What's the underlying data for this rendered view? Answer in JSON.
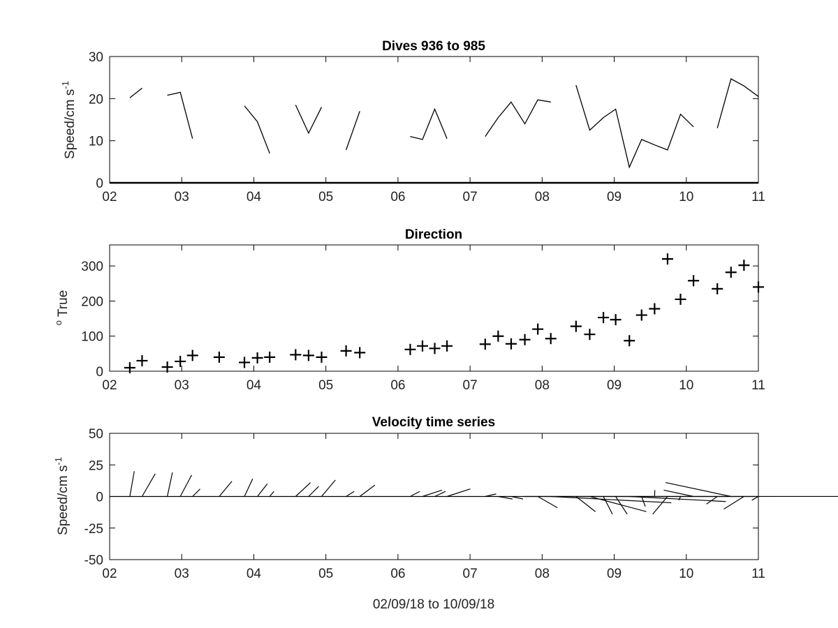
{
  "chart_data": [
    {
      "type": "line",
      "title": "Dives 936 to 985",
      "ylabel": "Speed/cm s",
      "ylabel_superscript": "-1",
      "xlim": [
        2,
        11
      ],
      "ylim": [
        0,
        30
      ],
      "xticks": [
        "02",
        "03",
        "04",
        "05",
        "06",
        "07",
        "08",
        "09",
        "10",
        "11"
      ],
      "yticks": [
        "0",
        "10",
        "20",
        "30"
      ],
      "grid": false,
      "series": [
        {
          "segments": [
            [
              [
                2.28,
                20.2
              ],
              [
                2.45,
                22.5
              ]
            ],
            [
              [
                2.8,
                20.8
              ],
              [
                2.98,
                21.5
              ],
              [
                3.15,
                10.5
              ]
            ],
            [
              [
                3.87,
                18.3
              ],
              [
                4.05,
                14.5
              ],
              [
                4.22,
                7.0
              ]
            ],
            [
              [
                4.58,
                18.5
              ],
              [
                4.76,
                11.8
              ],
              [
                4.94,
                18.0
              ]
            ],
            [
              [
                5.28,
                7.8
              ],
              [
                5.47,
                17.0
              ]
            ],
            [
              [
                6.17,
                11.0
              ],
              [
                6.34,
                10.3
              ],
              [
                6.51,
                17.5
              ],
              [
                6.68,
                10.5
              ]
            ],
            [
              [
                7.21,
                11.0
              ],
              [
                7.39,
                15.5
              ],
              [
                7.57,
                19.2
              ],
              [
                7.76,
                14.0
              ],
              [
                7.94,
                19.7
              ],
              [
                8.12,
                19.2
              ]
            ],
            [
              [
                8.47,
                23.2
              ],
              [
                8.66,
                12.5
              ],
              [
                8.85,
                15.5
              ],
              [
                9.02,
                17.5
              ],
              [
                9.21,
                3.7
              ],
              [
                9.38,
                10.3
              ],
              [
                9.56,
                9.0
              ],
              [
                9.74,
                7.8
              ],
              [
                9.92,
                16.3
              ],
              [
                10.1,
                13.3
              ]
            ],
            [
              [
                10.43,
                13.0
              ],
              [
                10.62,
                24.7
              ],
              [
                10.8,
                23.0
              ],
              [
                11.0,
                20.5
              ]
            ]
          ]
        }
      ]
    },
    {
      "type": "scatter",
      "title": "Direction",
      "ylabel": "True",
      "ylabel_superscript": "o",
      "xlim": [
        2,
        11
      ],
      "ylim": [
        0,
        360
      ],
      "xticks": [
        "02",
        "03",
        "04",
        "05",
        "06",
        "07",
        "08",
        "09",
        "10",
        "11"
      ],
      "yticks": [
        "0",
        "100",
        "200",
        "300"
      ],
      "grid": false,
      "marker": "+",
      "x": [
        2.28,
        2.45,
        2.8,
        2.98,
        3.15,
        3.52,
        3.87,
        4.05,
        4.22,
        4.58,
        4.76,
        4.94,
        5.28,
        5.47,
        6.17,
        6.34,
        6.51,
        6.68,
        7.21,
        7.39,
        7.57,
        7.76,
        7.94,
        8.12,
        8.47,
        8.66,
        8.85,
        9.02,
        9.21,
        9.38,
        9.56,
        9.74,
        9.92,
        10.1,
        10.43,
        10.62,
        10.8,
        11.0
      ],
      "y": [
        10,
        30,
        12,
        28,
        45,
        40,
        25,
        38,
        40,
        47,
        45,
        40,
        58,
        53,
        62,
        72,
        65,
        72,
        77,
        100,
        78,
        90,
        120,
        93,
        128,
        105,
        153,
        147,
        87,
        160,
        178,
        320,
        205,
        258,
        235,
        282,
        302,
        240
      ]
    },
    {
      "type": "line",
      "title": "Velocity time series",
      "ylabel": "Speed/cm s",
      "ylabel_superscript": "-1",
      "xlabel": "02/09/18 to 10/09/18",
      "xlim": [
        2,
        11
      ],
      "ylim": [
        -50,
        50
      ],
      "xticks": [
        "02",
        "03",
        "04",
        "05",
        "06",
        "07",
        "08",
        "09",
        "10",
        "11"
      ],
      "yticks": [
        "-50",
        "-25",
        "0",
        "25",
        "50"
      ],
      "grid": false,
      "baseline": 0,
      "sticks": [
        [
          2.28,
          20
        ],
        [
          2.45,
          18
        ],
        [
          2.8,
          19
        ],
        [
          2.98,
          17
        ],
        [
          3.15,
          6
        ],
        [
          3.52,
          12
        ],
        [
          3.87,
          14
        ],
        [
          4.05,
          10
        ],
        [
          4.22,
          4
        ],
        [
          4.58,
          11
        ],
        [
          4.76,
          8
        ],
        [
          4.94,
          13
        ],
        [
          5.28,
          4
        ],
        [
          5.47,
          9
        ],
        [
          6.17,
          4
        ],
        [
          6.34,
          5
        ],
        [
          6.51,
          4
        ],
        [
          6.68,
          6
        ],
        [
          7.21,
          2
        ],
        [
          7.39,
          -2
        ],
        [
          7.57,
          -2
        ],
        [
          7.76,
          2
        ],
        [
          7.94,
          -9
        ],
        [
          8.12,
          -5
        ],
        [
          8.47,
          -12
        ],
        [
          8.66,
          -12
        ],
        [
          8.85,
          -14
        ],
        [
          9.02,
          -14
        ],
        [
          9.21,
          -4
        ],
        [
          9.38,
          -8
        ],
        [
          9.56,
          5
        ],
        [
          9.74,
          -14
        ],
        [
          9.92,
          -3
        ],
        [
          10.1,
          5
        ],
        [
          10.43,
          -6
        ],
        [
          10.62,
          11
        ],
        [
          10.8,
          -10
        ],
        [
          11.0,
          -3
        ]
      ]
    }
  ]
}
